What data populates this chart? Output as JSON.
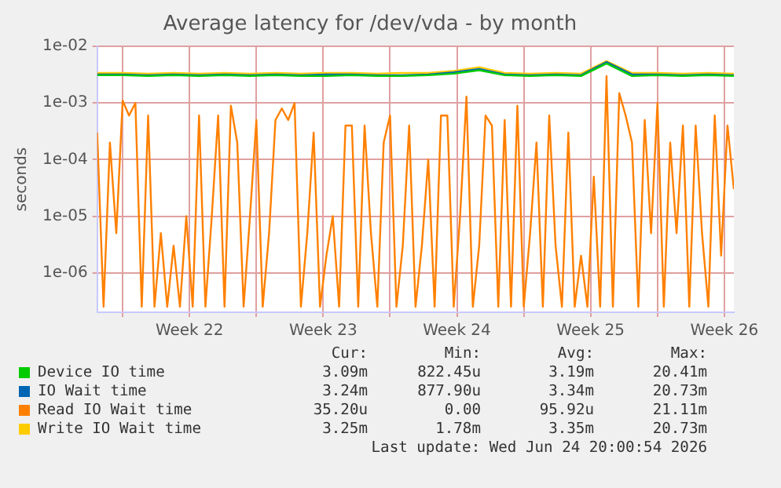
{
  "chart_data": {
    "type": "line",
    "title": "Average latency for /dev/vda - by month",
    "ylabel": "seconds",
    "log": "y",
    "grid": true,
    "legend": "bottom",
    "ylim": [
      2e-07,
      0.01
    ],
    "yticks": [
      {
        "value": 1e-06,
        "label": "1e-06"
      },
      {
        "value": 1e-05,
        "label": "1e-05"
      },
      {
        "value": 0.0001,
        "label": "1e-04"
      },
      {
        "value": 0.001,
        "label": "1e-03"
      },
      {
        "value": 0.01,
        "label": "1e-02"
      }
    ],
    "xlim": [
      "2026-05-23T16:00",
      "2026-06-26T00:00"
    ],
    "xticks": [
      {
        "value": "2026-05-25",
        "label": null
      },
      {
        "value": "2026-05-28T12:00",
        "label": "Week 22"
      },
      {
        "value": "2026-06-01",
        "label": null
      },
      {
        "value": "2026-06-04T12:00",
        "label": "Week 23"
      },
      {
        "value": "2026-06-08",
        "label": null
      },
      {
        "value": "2026-06-11T12:00",
        "label": "Week 24"
      },
      {
        "value": "2026-06-15",
        "label": null
      },
      {
        "value": "2026-06-18T12:00",
        "label": "Week 25"
      },
      {
        "value": "2026-06-22",
        "label": null
      },
      {
        "value": "2026-06-25T12:00",
        "label": "Week 26"
      }
    ],
    "x": [
      "2026-05-23T16:00",
      "2026-05-24T00:00",
      "2026-05-24T08:00",
      "2026-05-24T16:00",
      "2026-05-25T00:00",
      "2026-05-25T08:00",
      "2026-05-25T16:00",
      "2026-05-26T00:00",
      "2026-05-26T08:00",
      "2026-05-26T16:00",
      "2026-05-27T00:00",
      "2026-05-27T08:00",
      "2026-05-27T16:00",
      "2026-05-28T00:00",
      "2026-05-28T08:00",
      "2026-05-28T16:00",
      "2026-05-29T00:00",
      "2026-05-29T08:00",
      "2026-05-29T16:00",
      "2026-05-30T00:00",
      "2026-05-30T08:00",
      "2026-05-30T16:00",
      "2026-05-31T00:00",
      "2026-05-31T08:00",
      "2026-05-31T16:00",
      "2026-06-01T00:00",
      "2026-06-01T08:00",
      "2026-06-01T16:00",
      "2026-06-02T00:00",
      "2026-06-02T08:00",
      "2026-06-02T16:00",
      "2026-06-03T00:00",
      "2026-06-03T08:00",
      "2026-06-03T16:00",
      "2026-06-04T00:00",
      "2026-06-04T08:00",
      "2026-06-04T16:00",
      "2026-06-05T00:00",
      "2026-06-05T08:00",
      "2026-06-05T16:00",
      "2026-06-06T00:00",
      "2026-06-06T08:00",
      "2026-06-06T16:00",
      "2026-06-07T00:00",
      "2026-06-07T08:00",
      "2026-06-07T16:00",
      "2026-06-08T00:00",
      "2026-06-08T08:00",
      "2026-06-08T16:00",
      "2026-06-09T00:00",
      "2026-06-09T08:00",
      "2026-06-09T16:00",
      "2026-06-10T00:00",
      "2026-06-10T08:00",
      "2026-06-10T16:00",
      "2026-06-11T00:00",
      "2026-06-11T08:00",
      "2026-06-11T16:00",
      "2026-06-12T00:00",
      "2026-06-12T08:00",
      "2026-06-12T16:00",
      "2026-06-13T00:00",
      "2026-06-13T08:00",
      "2026-06-13T16:00",
      "2026-06-14T00:00",
      "2026-06-14T08:00",
      "2026-06-14T16:00",
      "2026-06-15T00:00",
      "2026-06-15T08:00",
      "2026-06-15T16:00",
      "2026-06-16T00:00",
      "2026-06-16T08:00",
      "2026-06-16T16:00",
      "2026-06-17T00:00",
      "2026-06-17T08:00",
      "2026-06-17T16:00",
      "2026-06-18T00:00",
      "2026-06-18T08:00",
      "2026-06-18T16:00",
      "2026-06-19T00:00",
      "2026-06-19T08:00",
      "2026-06-19T16:00",
      "2026-06-20T00:00",
      "2026-06-20T08:00",
      "2026-06-20T16:00",
      "2026-06-21T00:00",
      "2026-06-21T08:00",
      "2026-06-21T16:00",
      "2026-06-22T00:00",
      "2026-06-22T08:00",
      "2026-06-22T16:00",
      "2026-06-23T00:00",
      "2026-06-23T08:00",
      "2026-06-23T16:00",
      "2026-06-24T00:00",
      "2026-06-24T08:00",
      "2026-06-24T16:00",
      "2026-06-25T00:00",
      "2026-06-25T08:00",
      "2026-06-25T16:00",
      "2026-06-26T00:00"
    ],
    "series": [
      {
        "name": "Device IO time",
        "color": "#00cc00",
        "x": [
          "2026-05-23T16:00",
          "2026-05-25T00:00",
          "2026-05-26T08:00",
          "2026-05-27T16:00",
          "2026-05-29T00:00",
          "2026-05-30T08:00",
          "2026-05-31T16:00",
          "2026-06-02T00:00",
          "2026-06-03T08:00",
          "2026-06-04T16:00",
          "2026-06-06T00:00",
          "2026-06-07T08:00",
          "2026-06-08T16:00",
          "2026-06-10T00:00",
          "2026-06-11T08:00",
          "2026-06-12T16:00",
          "2026-06-14T00:00",
          "2026-06-15T08:00",
          "2026-06-16T16:00",
          "2026-06-18T00:00",
          "2026-06-19T08:00",
          "2026-06-20T16:00",
          "2026-06-22T00:00",
          "2026-06-23T08:00",
          "2026-06-24T16:00",
          "2026-06-26T00:00"
        ],
        "values": [
          0.0031,
          0.0031,
          0.003,
          0.0031,
          0.003,
          0.0031,
          0.003,
          0.0031,
          0.003,
          0.003,
          0.0031,
          0.003,
          0.003,
          0.0031,
          0.0033,
          0.0038,
          0.0031,
          0.003,
          0.0031,
          0.003,
          0.005,
          0.003,
          0.0031,
          0.003,
          0.0031,
          0.003
        ]
      },
      {
        "name": "IO Wait time",
        "color": "#0066b3",
        "x": [
          "2026-05-23T16:00",
          "2026-05-25T00:00",
          "2026-05-26T08:00",
          "2026-05-27T16:00",
          "2026-05-29T00:00",
          "2026-05-30T08:00",
          "2026-05-31T16:00",
          "2026-06-02T00:00",
          "2026-06-03T08:00",
          "2026-06-04T16:00",
          "2026-06-06T00:00",
          "2026-06-07T08:00",
          "2026-06-08T16:00",
          "2026-06-10T00:00",
          "2026-06-11T08:00",
          "2026-06-12T16:00",
          "2026-06-14T00:00",
          "2026-06-15T08:00",
          "2026-06-16T16:00",
          "2026-06-18T00:00",
          "2026-06-19T08:00",
          "2026-06-20T16:00",
          "2026-06-22T00:00",
          "2026-06-23T08:00",
          "2026-06-24T16:00",
          "2026-06-26T00:00"
        ],
        "values": [
          0.0032,
          0.0032,
          0.0031,
          0.0032,
          0.0031,
          0.0032,
          0.0031,
          0.0032,
          0.0031,
          0.0032,
          0.0032,
          0.0031,
          0.0031,
          0.0032,
          0.0035,
          0.004,
          0.0032,
          0.0031,
          0.0032,
          0.0031,
          0.0053,
          0.0032,
          0.0032,
          0.0031,
          0.0032,
          0.0031
        ]
      },
      {
        "name": "Read IO Wait time",
        "color": "#ff8000",
        "values": [
          0.0003,
          2.5e-07,
          0.0002,
          5e-06,
          0.0011,
          0.0006,
          0.001,
          2.5e-07,
          0.0006,
          2.5e-07,
          5e-06,
          2.5e-07,
          3e-06,
          2.5e-07,
          1e-05,
          2.5e-07,
          0.0006,
          2.5e-07,
          1e-05,
          0.0006,
          2.5e-07,
          0.0009,
          0.0002,
          2.5e-07,
          1e-05,
          0.0005,
          2.5e-07,
          5e-06,
          0.0005,
          0.0008,
          0.0005,
          0.001,
          2.5e-07,
          5e-06,
          0.0003,
          2.5e-07,
          2e-06,
          1e-05,
          2.5e-07,
          0.0004,
          0.0004,
          2.5e-07,
          0.0004,
          5e-06,
          2.5e-07,
          0.0002,
          0.0006,
          2.5e-07,
          3e-06,
          0.0004,
          2.5e-07,
          3e-06,
          0.0001,
          2.5e-07,
          0.0006,
          0.0006,
          2.5e-07,
          1e-05,
          0.0013,
          2.5e-07,
          3e-06,
          0.0006,
          0.0004,
          2.5e-07,
          0.0005,
          2.5e-07,
          0.0009,
          2.5e-07,
          5e-06,
          0.0002,
          2.5e-07,
          0.0006,
          3e-06,
          2.5e-07,
          0.0003,
          2.5e-07,
          2e-06,
          2.5e-07,
          5e-05,
          2.5e-07,
          0.003,
          2.5e-07,
          0.0015,
          0.0006,
          0.0002,
          2.5e-07,
          0.0005,
          5e-06,
          0.001,
          2.5e-07,
          0.0002,
          5e-06,
          0.0004,
          2.5e-07,
          0.0004,
          5e-06,
          2.5e-07,
          0.0006,
          2e-06,
          0.0004,
          3e-05
        ]
      },
      {
        "name": "Write IO Wait time",
        "color": "#ffcc00",
        "x": [
          "2026-05-23T16:00",
          "2026-05-25T00:00",
          "2026-05-26T08:00",
          "2026-05-27T16:00",
          "2026-05-29T00:00",
          "2026-05-30T08:00",
          "2026-05-31T16:00",
          "2026-06-02T00:00",
          "2026-06-03T08:00",
          "2026-06-04T16:00",
          "2026-06-06T00:00",
          "2026-06-07T08:00",
          "2026-06-08T16:00",
          "2026-06-10T00:00",
          "2026-06-11T08:00",
          "2026-06-12T16:00",
          "2026-06-14T00:00",
          "2026-06-15T08:00",
          "2026-06-16T16:00",
          "2026-06-18T00:00",
          "2026-06-19T08:00",
          "2026-06-20T16:00",
          "2026-06-22T00:00",
          "2026-06-23T08:00",
          "2026-06-24T16:00",
          "2026-06-26T00:00"
        ],
        "values": [
          0.0034,
          0.0034,
          0.0033,
          0.0034,
          0.0033,
          0.0034,
          0.0033,
          0.0034,
          0.0033,
          0.0034,
          0.0034,
          0.0033,
          0.0034,
          0.0034,
          0.0037,
          0.0043,
          0.0034,
          0.0033,
          0.0034,
          0.0033,
          0.0055,
          0.0034,
          0.0034,
          0.0033,
          0.0034,
          0.0033
        ]
      }
    ],
    "annotations": [
      "Cur:",
      "Min:",
      "Avg:",
      "Max:",
      "3.09m",
      "822.45u",
      "3.19m",
      "20.41m",
      "3.24m",
      "877.90u",
      "3.34m",
      "20.73m",
      "35.20u",
      "0.00",
      "95.92u",
      "21.11m",
      "3.25m",
      "1.78m",
      "3.35m",
      "20.73m",
      "Last update: Wed Jun 24 20:00:54 2026"
    ]
  }
}
